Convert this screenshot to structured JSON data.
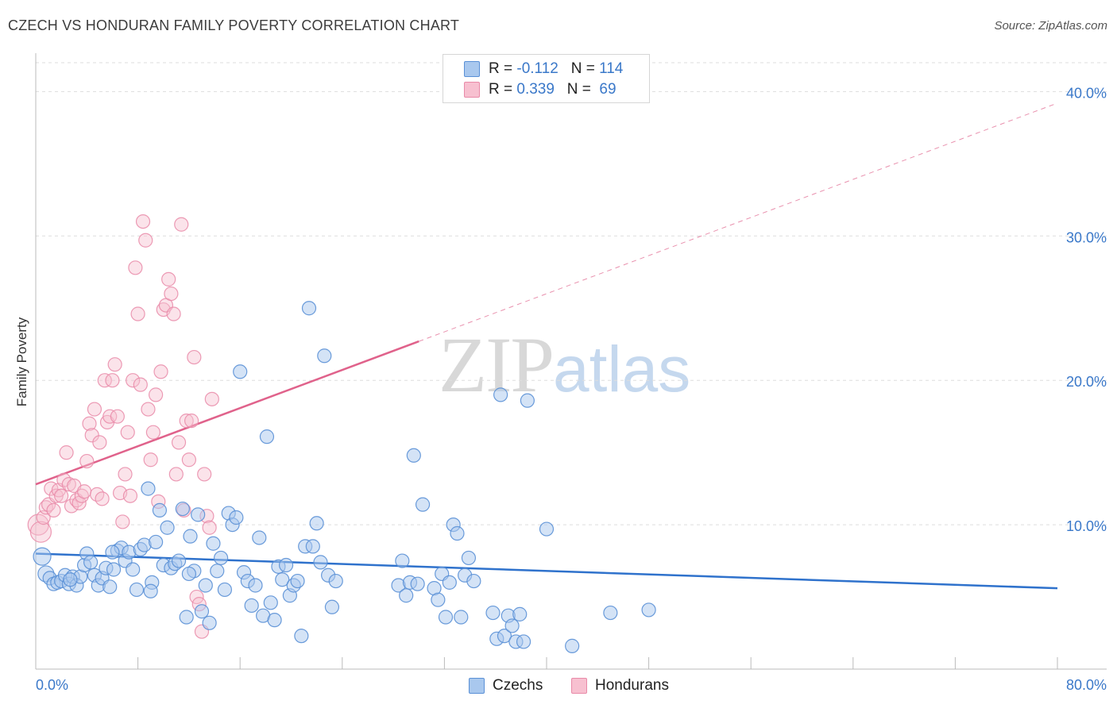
{
  "title": "CZECH VS HONDURAN FAMILY POVERTY CORRELATION CHART",
  "source": "Source: ZipAtlas.com",
  "watermark": {
    "zip": "ZIP",
    "atlas": "atlas"
  },
  "colors": {
    "czech_fill": "#a9c8ee",
    "czech_stroke": "#5a90d6",
    "czech_line": "#2f72cc",
    "honduran_fill": "#f7c0d0",
    "honduran_stroke": "#e98aa8",
    "honduran_line": "#e0628b",
    "tick_label": "#3a78c9",
    "grid": "#dddddd"
  },
  "legend": {
    "czech": {
      "r_label": "R = ",
      "r_value": "-0.112",
      "n_label": "N = ",
      "n_value": "114"
    },
    "honduran": {
      "r_label": "R = ",
      "r_value": "0.339",
      "n_label": "N = ",
      "n_value": " 69"
    }
  },
  "bottom_legend": {
    "czech": "Czechs",
    "honduran": "Hondurans"
  },
  "chart_data": {
    "type": "scatter",
    "title": "CZECH VS HONDURAN FAMILY POVERTY CORRELATION CHART",
    "xlabel": "",
    "ylabel": "Family Poverty",
    "xlim": [
      0,
      80
    ],
    "ylim": [
      0,
      42
    ],
    "x_tick_labels": [
      "0.0%",
      "80.0%"
    ],
    "y_ticks": [
      10,
      20,
      30,
      40
    ],
    "y_tick_labels": [
      "10.0%",
      "20.0%",
      "30.0%",
      "40.0%"
    ],
    "grid": "horizontal dashed",
    "legend_position": "top-center",
    "series": [
      {
        "name": "Czechs",
        "r": -0.112,
        "n": 114,
        "trend": {
          "x": [
            0,
            80
          ],
          "y": [
            8.0,
            5.6
          ]
        },
        "points": [
          [
            0.5,
            7.8
          ],
          [
            0.8,
            6.6
          ],
          [
            1.1,
            6.3
          ],
          [
            1.4,
            5.9
          ],
          [
            1.7,
            6.0
          ],
          [
            2.0,
            6.1
          ],
          [
            2.3,
            6.5
          ],
          [
            2.6,
            5.9
          ],
          [
            2.9,
            6.4
          ],
          [
            3.2,
            5.8
          ],
          [
            3.5,
            6.4
          ],
          [
            3.8,
            7.2
          ],
          [
            4.0,
            8.0
          ],
          [
            4.3,
            7.4
          ],
          [
            4.6,
            6.5
          ],
          [
            4.9,
            5.8
          ],
          [
            5.2,
            6.3
          ],
          [
            5.5,
            7.0
          ],
          [
            5.8,
            5.7
          ],
          [
            6.1,
            6.9
          ],
          [
            6.4,
            8.2
          ],
          [
            6.7,
            8.4
          ],
          [
            7.0,
            7.5
          ],
          [
            7.3,
            8.1
          ],
          [
            7.6,
            6.9
          ],
          [
            7.9,
            5.5
          ],
          [
            8.2,
            8.3
          ],
          [
            8.5,
            8.6
          ],
          [
            8.8,
            12.5
          ],
          [
            9.1,
            6.0
          ],
          [
            9.4,
            8.8
          ],
          [
            9.7,
            11.0
          ],
          [
            10.0,
            7.2
          ],
          [
            10.3,
            9.8
          ],
          [
            10.6,
            7.0
          ],
          [
            10.9,
            7.3
          ],
          [
            11.2,
            7.5
          ],
          [
            11.5,
            11.1
          ],
          [
            11.8,
            3.6
          ],
          [
            12.1,
            9.2
          ],
          [
            12.4,
            6.8
          ],
          [
            12.7,
            10.7
          ],
          [
            13.0,
            4.0
          ],
          [
            13.3,
            5.8
          ],
          [
            13.6,
            3.2
          ],
          [
            13.9,
            8.7
          ],
          [
            14.2,
            6.8
          ],
          [
            14.5,
            7.7
          ],
          [
            14.8,
            5.5
          ],
          [
            15.1,
            10.8
          ],
          [
            15.4,
            10.0
          ],
          [
            15.7,
            10.5
          ],
          [
            16.0,
            20.6
          ],
          [
            16.3,
            6.7
          ],
          [
            16.6,
            6.1
          ],
          [
            16.9,
            4.4
          ],
          [
            17.2,
            5.8
          ],
          [
            17.5,
            9.1
          ],
          [
            17.8,
            3.7
          ],
          [
            18.1,
            16.1
          ],
          [
            18.4,
            4.6
          ],
          [
            18.7,
            3.4
          ],
          [
            19.0,
            7.1
          ],
          [
            19.3,
            6.2
          ],
          [
            19.6,
            7.2
          ],
          [
            19.9,
            5.1
          ],
          [
            20.2,
            5.8
          ],
          [
            20.5,
            6.1
          ],
          [
            20.8,
            2.3
          ],
          [
            21.1,
            8.5
          ],
          [
            21.4,
            25.0
          ],
          [
            21.7,
            8.5
          ],
          [
            22.0,
            10.1
          ],
          [
            22.3,
            7.4
          ],
          [
            22.6,
            21.7
          ],
          [
            22.9,
            6.5
          ],
          [
            23.2,
            4.3
          ],
          [
            23.5,
            6.1
          ],
          [
            28.4,
            5.8
          ],
          [
            28.7,
            7.5
          ],
          [
            29.0,
            5.1
          ],
          [
            29.3,
            6.0
          ],
          [
            29.6,
            14.8
          ],
          [
            29.9,
            5.9
          ],
          [
            30.3,
            11.4
          ],
          [
            31.2,
            5.6
          ],
          [
            31.5,
            4.8
          ],
          [
            31.8,
            6.6
          ],
          [
            32.1,
            3.6
          ],
          [
            32.4,
            6.0
          ],
          [
            32.7,
            10.0
          ],
          [
            33.0,
            9.4
          ],
          [
            33.3,
            3.6
          ],
          [
            33.6,
            6.5
          ],
          [
            33.9,
            7.7
          ],
          [
            34.3,
            6.1
          ],
          [
            35.8,
            3.9
          ],
          [
            36.1,
            2.1
          ],
          [
            36.4,
            19.0
          ],
          [
            36.7,
            2.3
          ],
          [
            37.0,
            3.7
          ],
          [
            37.3,
            3.0
          ],
          [
            37.6,
            1.9
          ],
          [
            37.9,
            3.8
          ],
          [
            38.2,
            1.9
          ],
          [
            38.5,
            18.6
          ],
          [
            40.0,
            9.7
          ],
          [
            42.0,
            1.6
          ],
          [
            45.0,
            3.9
          ],
          [
            48.0,
            4.1
          ],
          [
            2.7,
            6.2
          ],
          [
            6.0,
            8.1
          ],
          [
            9.0,
            5.4
          ],
          [
            12.0,
            6.6
          ]
        ]
      },
      {
        "name": "Hondurans",
        "r": 0.339,
        "n": 69,
        "trend": {
          "x": [
            0,
            30
          ],
          "y": [
            12.8,
            22.7
          ]
        },
        "trend_dashed_extension": {
          "x": [
            30,
            80
          ],
          "y": [
            22.7,
            39.2
          ]
        },
        "points": [
          [
            0.2,
            10.0
          ],
          [
            0.4,
            9.5
          ],
          [
            0.6,
            10.5
          ],
          [
            0.8,
            11.2
          ],
          [
            1.0,
            11.4
          ],
          [
            1.2,
            12.5
          ],
          [
            1.4,
            11.0
          ],
          [
            1.6,
            12.0
          ],
          [
            1.8,
            12.4
          ],
          [
            2.0,
            12.0
          ],
          [
            2.2,
            13.1
          ],
          [
            2.4,
            15.0
          ],
          [
            2.6,
            12.8
          ],
          [
            2.8,
            11.3
          ],
          [
            3.0,
            12.7
          ],
          [
            3.2,
            11.7
          ],
          [
            3.4,
            11.5
          ],
          [
            3.6,
            12.0
          ],
          [
            3.8,
            12.3
          ],
          [
            4.0,
            14.4
          ],
          [
            4.2,
            17.0
          ],
          [
            4.4,
            16.2
          ],
          [
            4.6,
            18.0
          ],
          [
            4.8,
            12.1
          ],
          [
            5.0,
            15.7
          ],
          [
            5.2,
            11.8
          ],
          [
            5.4,
            20.0
          ],
          [
            5.6,
            17.1
          ],
          [
            5.8,
            17.5
          ],
          [
            6.0,
            20.0
          ],
          [
            6.2,
            21.1
          ],
          [
            6.4,
            17.5
          ],
          [
            6.6,
            12.2
          ],
          [
            6.8,
            10.2
          ],
          [
            7.0,
            13.5
          ],
          [
            7.2,
            16.4
          ],
          [
            7.4,
            12.0
          ],
          [
            7.6,
            20.0
          ],
          [
            7.8,
            27.8
          ],
          [
            8.0,
            24.6
          ],
          [
            8.2,
            19.7
          ],
          [
            8.4,
            31.0
          ],
          [
            8.6,
            29.7
          ],
          [
            8.8,
            18.0
          ],
          [
            9.0,
            14.5
          ],
          [
            9.2,
            16.4
          ],
          [
            9.4,
            19.0
          ],
          [
            9.6,
            11.6
          ],
          [
            9.8,
            20.6
          ],
          [
            10.0,
            24.9
          ],
          [
            10.2,
            25.2
          ],
          [
            10.4,
            27.0
          ],
          [
            10.6,
            26.0
          ],
          [
            10.8,
            24.6
          ],
          [
            11.0,
            13.5
          ],
          [
            11.2,
            15.7
          ],
          [
            11.4,
            30.8
          ],
          [
            11.6,
            11.0
          ],
          [
            11.8,
            17.2
          ],
          [
            12.0,
            14.5
          ],
          [
            12.2,
            17.2
          ],
          [
            12.4,
            21.6
          ],
          [
            12.6,
            5.0
          ],
          [
            12.8,
            4.5
          ],
          [
            13.0,
            2.6
          ],
          [
            13.2,
            13.5
          ],
          [
            13.4,
            10.6
          ],
          [
            13.6,
            9.8
          ],
          [
            13.8,
            18.7
          ]
        ]
      }
    ]
  }
}
